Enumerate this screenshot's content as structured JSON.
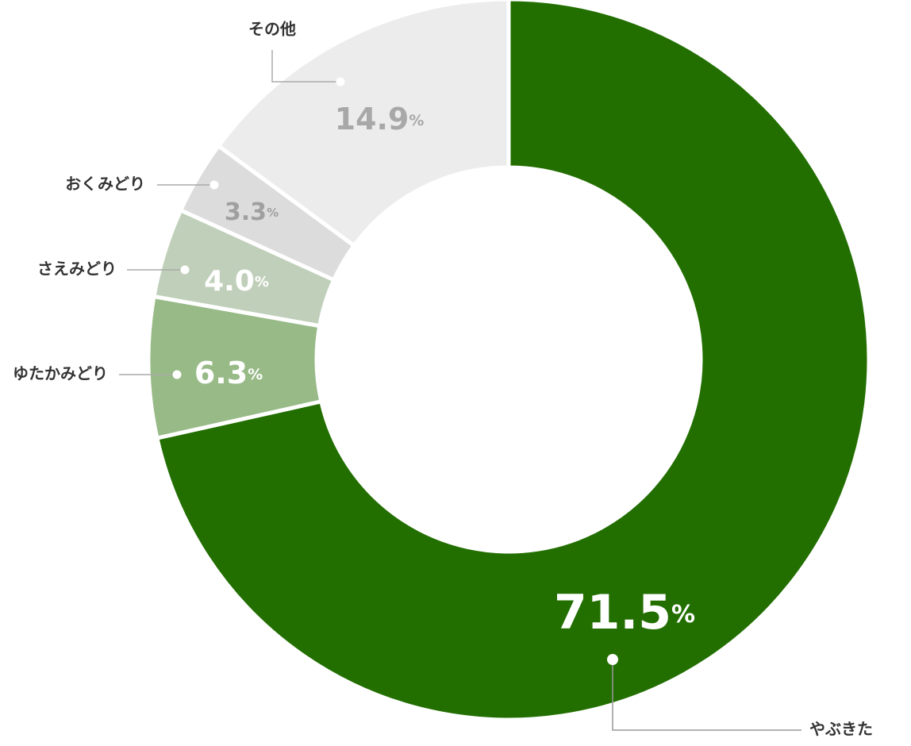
{
  "chart_data": {
    "type": "donut",
    "categories": [
      "やぶきた",
      "ゆたかみどり",
      "さえみどり",
      "おくみどり",
      "その他"
    ],
    "values": [
      71.5,
      6.3,
      4.0,
      3.3,
      14.9
    ],
    "value_labels": [
      "71.5%",
      "6.3%",
      "4.0%",
      "3.3%",
      "14.9%"
    ],
    "colors": [
      "#226f00",
      "#97ba87",
      "#c0cfb9",
      "#dcdcdc",
      "#ececec"
    ]
  }
}
